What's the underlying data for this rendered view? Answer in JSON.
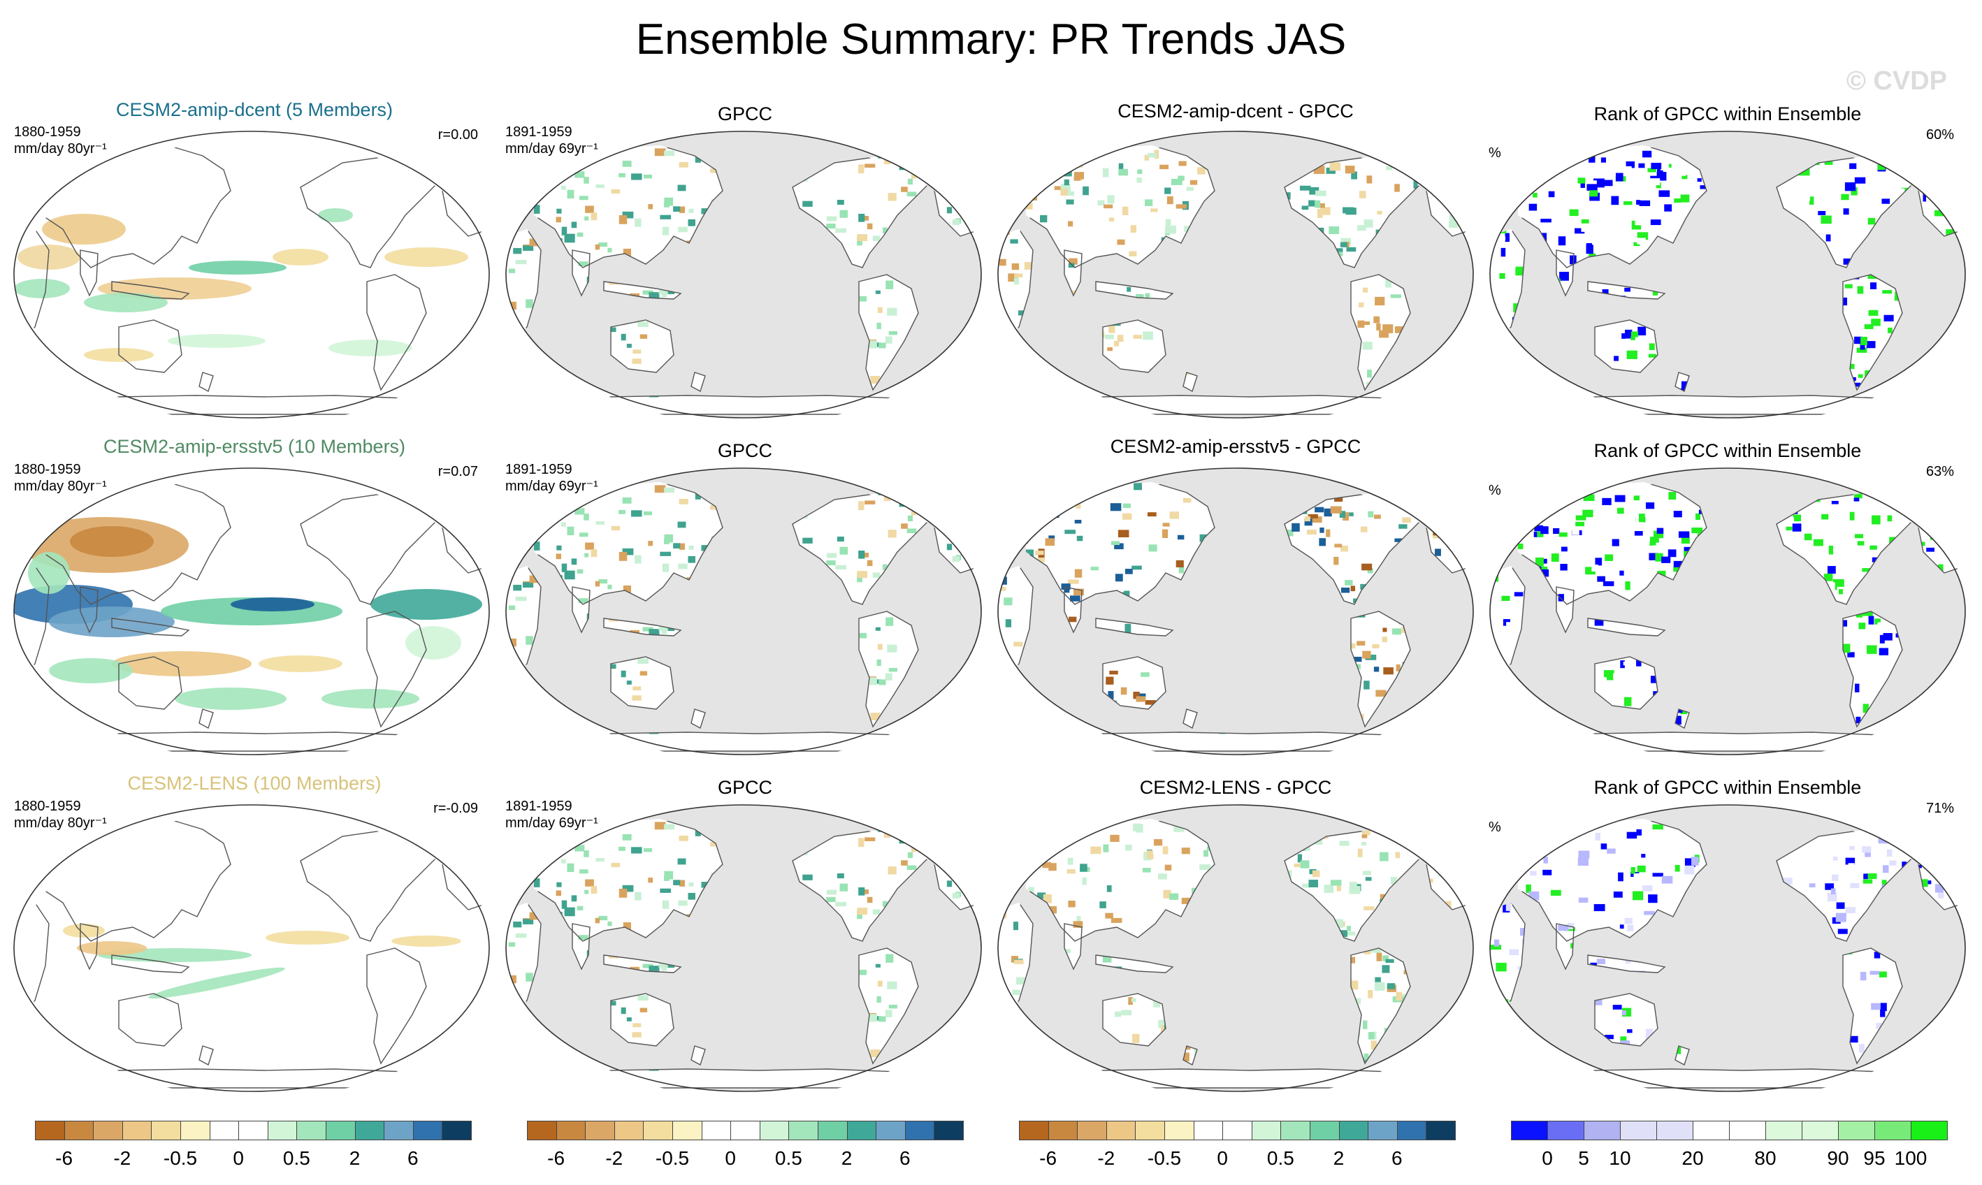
{
  "title": "Ensemble Summary: PR Trends JAS",
  "watermark": "© CVDP",
  "rows": [
    {
      "model": {
        "title": "CESM2-amip-dcent (5 Members)",
        "title_color": "#1a6f8c",
        "period": "1880-1959",
        "units": "mm/day 80yr⁻¹",
        "r": "r=0.00"
      },
      "obs": {
        "title": "GPCC",
        "period": "1891-1959",
        "units": "mm/day 69yr⁻¹"
      },
      "diff": {
        "title": "CESM2-amip-dcent - GPCC"
      },
      "rank": {
        "title": "Rank of GPCC within Ensemble",
        "unit": "%",
        "pct": "60%"
      }
    },
    {
      "model": {
        "title": "CESM2-amip-ersstv5 (10 Members)",
        "title_color": "#4f8a63",
        "period": "1880-1959",
        "units": "mm/day 80yr⁻¹",
        "r": "r=0.07"
      },
      "obs": {
        "title": "GPCC",
        "period": "1891-1959",
        "units": "mm/day 69yr⁻¹"
      },
      "diff": {
        "title": "CESM2-amip-ersstv5 - GPCC"
      },
      "rank": {
        "title": "Rank of GPCC within Ensemble",
        "unit": "%",
        "pct": "63%"
      }
    },
    {
      "model": {
        "title": "CESM2-LENS (100 Members)",
        "title_color": "#d8c27a",
        "period": "1880-1959",
        "units": "mm/day 80yr⁻¹",
        "r": "r=-0.09"
      },
      "obs": {
        "title": "GPCC",
        "period": "1891-1959",
        "units": "mm/day 69yr⁻¹"
      },
      "diff": {
        "title": "CESM2-LENS - GPCC"
      },
      "rank": {
        "title": "Rank of GPCC within Ensemble",
        "unit": "%",
        "pct": "71%"
      }
    }
  ],
  "colorbars": {
    "trend": {
      "colors": [
        "#b5661f",
        "#c98840",
        "#dba766",
        "#ecc786",
        "#f3de9f",
        "#fbf3c3",
        "#ffffff",
        "#ffffff",
        "#d2f5d8",
        "#a3e6bb",
        "#6fcfa5",
        "#3fa899",
        "#6ea3c8",
        "#2f72ae",
        "#0d3d60"
      ],
      "ticks": [
        "-6",
        "-2",
        "-0.5",
        "0",
        "0.5",
        "2",
        "6"
      ]
    },
    "rank": {
      "colors": [
        "#0a12ff",
        "#6a6ef5",
        "#b0b2f2",
        "#e0e1f8",
        "#e0e1f8",
        "#ffffff",
        "#ffffff",
        "#dcf9dc",
        "#dcf9dc",
        "#a4f0a4",
        "#78ea78",
        "#18f018"
      ],
      "ticks": [
        "0",
        "5",
        "10",
        "20",
        "80",
        "90",
        "95",
        "100"
      ]
    }
  },
  "colors": {
    "ocean_masked": "#e4e4e4",
    "coast": "#555555",
    "brown": "#d9a35e",
    "brown_dark": "#a75e1e",
    "green": "#98e3b3",
    "green_dark": "#3fa38f",
    "blue_dark": "#1b5f99",
    "rank_blue": "#0000ff",
    "rank_green": "#22ee22"
  }
}
